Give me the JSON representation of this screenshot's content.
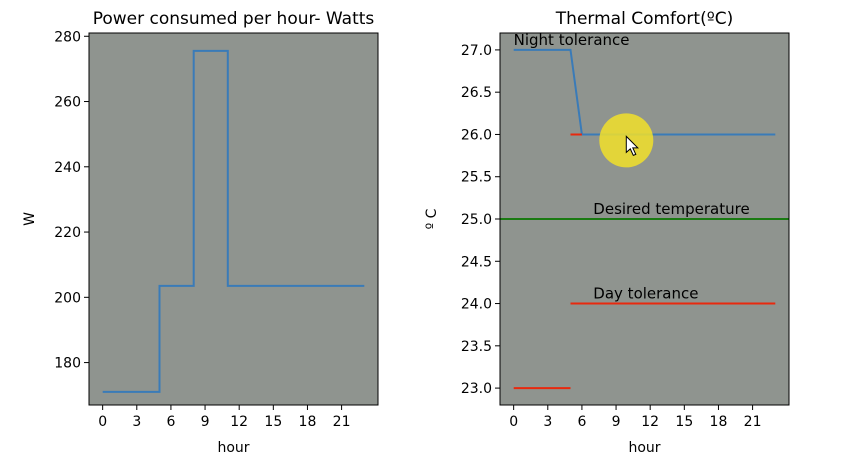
{
  "colors": {
    "background": "#ffffff",
    "plot_bg": "#8f948f",
    "series_blue": "#3a7bb8",
    "tolerance_red": "#e8290e",
    "desired_green": "#1a7a12",
    "cursor_highlight": "#f2e02a"
  },
  "chart_data": [
    {
      "type": "line",
      "step": true,
      "title": "Power consumed per hour- Watts",
      "xlabel": "hour",
      "ylabel": "W",
      "xlim": [
        -1.2,
        24.2
      ],
      "ylim": [
        167,
        281
      ],
      "xticks": [
        0,
        3,
        6,
        9,
        12,
        15,
        18,
        21
      ],
      "yticks": [
        180,
        200,
        220,
        240,
        260,
        280
      ],
      "grid": false,
      "series": [
        {
          "color": "#3a7bb8",
          "x": [
            0,
            5,
            5,
            8,
            8,
            11,
            11,
            23
          ],
          "y": [
            171,
            171,
            203.5,
            203.5,
            275.5,
            275.5,
            203.5,
            203.5
          ]
        }
      ]
    },
    {
      "type": "line",
      "title": "Thermal Comfort(ºC)",
      "xlabel": "hour",
      "ylabel": "º C",
      "xlim": [
        -1.2,
        24.2
      ],
      "ylim": [
        22.8,
        27.2
      ],
      "xticks": [
        0,
        3,
        6,
        9,
        12,
        15,
        18,
        21
      ],
      "yticks": [
        23.0,
        23.5,
        24.0,
        24.5,
        25.0,
        25.5,
        26.0,
        26.5,
        27.0
      ],
      "grid": false,
      "series": [
        {
          "color": "#3a7bb8",
          "x": [
            0,
            5,
            6,
            23
          ],
          "y": [
            27.0,
            27.0,
            26.0,
            26.0
          ]
        },
        {
          "color": "#e8290e",
          "x": [
            5,
            6
          ],
          "y": [
            26.0,
            26.0
          ]
        },
        {
          "color": "#e8290e",
          "x": [
            0,
            5
          ],
          "y": [
            23.0,
            23.0
          ]
        },
        {
          "color": "#e8290e",
          "x": [
            5,
            23
          ],
          "y": [
            24.0,
            24.0
          ]
        },
        {
          "color": "#1a7a12",
          "x": [
            -1.2,
            24.2
          ],
          "y": [
            25.0,
            25.0
          ]
        }
      ],
      "annotations": [
        {
          "text": "Night tolerance",
          "x": 0,
          "y": 27.06
        },
        {
          "text": "Desired temperature",
          "x": 7,
          "y": 25.06
        },
        {
          "text": "Day tolerance",
          "x": 7,
          "y": 24.06
        }
      ]
    }
  ]
}
